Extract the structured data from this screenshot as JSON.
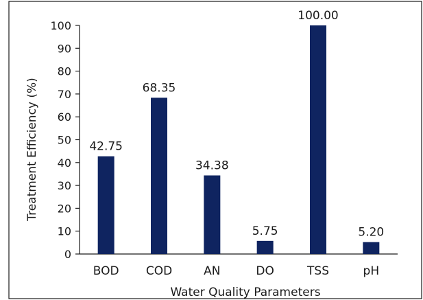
{
  "chart_data": {
    "type": "bar",
    "categories": [
      "BOD",
      "COD",
      "AN",
      "DO",
      "TSS",
      "pH"
    ],
    "values": [
      42.75,
      68.35,
      34.38,
      5.75,
      100.0,
      5.2
    ],
    "value_labels": [
      "42.75",
      "68.35",
      "34.38",
      "5.75",
      "100.00",
      "5.20"
    ],
    "title": "",
    "xlabel": "Water Quality Parameters",
    "ylabel": "Treatment Efficiency (%)",
    "ylim": [
      0,
      100
    ],
    "yticks": [
      "0",
      "10",
      "20",
      "30",
      "40",
      "50",
      "60",
      "70",
      "80",
      "90",
      "100"
    ],
    "grid": false,
    "bar_color": "#0f2460"
  }
}
